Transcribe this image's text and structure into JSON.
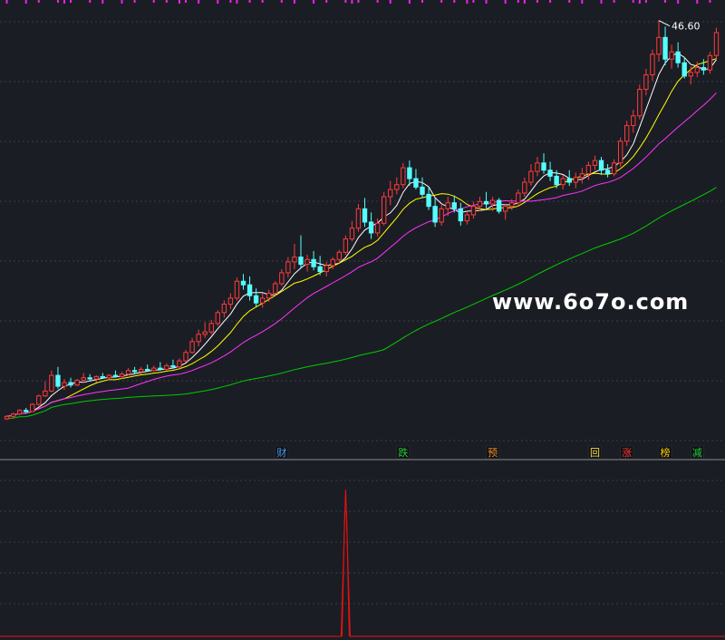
{
  "watermark": "www.6o7o.com",
  "chart_data": [
    {
      "type": "candlestick",
      "panel": "price",
      "high_label": "46.60",
      "ylim": [
        13,
        48
      ],
      "grid": true,
      "moving_averages": [
        {
          "period": 5,
          "color": "#ffffff"
        },
        {
          "period": 10,
          "color": "#ffff00"
        },
        {
          "period": 20,
          "color": "#ff33ff"
        },
        {
          "period": 60,
          "color": "#00cc00"
        }
      ],
      "candles": [
        [
          13.6,
          13.9,
          13.5,
          13.8
        ],
        [
          13.8,
          14.1,
          13.7,
          14.0
        ],
        [
          14.0,
          14.4,
          13.9,
          14.3
        ],
        [
          14.3,
          14.5,
          14.1,
          14.2
        ],
        [
          14.2,
          14.9,
          14.2,
          14.8
        ],
        [
          14.8,
          15.6,
          14.7,
          15.5
        ],
        [
          15.5,
          16.7,
          15.4,
          15.9
        ],
        [
          15.9,
          17.6,
          15.8,
          17.2
        ],
        [
          17.2,
          17.9,
          16.1,
          16.3
        ],
        [
          16.3,
          16.9,
          16.0,
          16.6
        ],
        [
          16.6,
          17.0,
          16.2,
          16.4
        ],
        [
          16.4,
          16.9,
          16.3,
          16.8
        ],
        [
          16.8,
          17.4,
          16.6,
          17.0
        ],
        [
          17.0,
          17.3,
          16.7,
          16.9
        ],
        [
          16.9,
          17.2,
          16.6,
          17.1
        ],
        [
          17.1,
          17.4,
          16.9,
          17.0
        ],
        [
          17.0,
          17.3,
          16.8,
          17.2
        ],
        [
          17.2,
          17.6,
          17.0,
          17.1
        ],
        [
          17.1,
          17.5,
          16.9,
          17.3
        ],
        [
          17.3,
          17.8,
          17.2,
          17.6
        ],
        [
          17.6,
          17.9,
          17.3,
          17.5
        ],
        [
          17.5,
          17.9,
          17.3,
          17.7
        ],
        [
          17.7,
          18.1,
          17.5,
          17.6
        ],
        [
          17.6,
          18.0,
          17.5,
          17.8
        ],
        [
          17.8,
          18.3,
          17.6,
          17.7
        ],
        [
          17.7,
          18.2,
          17.6,
          18.0
        ],
        [
          18.0,
          18.5,
          17.8,
          17.9
        ],
        [
          17.9,
          18.6,
          17.8,
          18.4
        ],
        [
          18.4,
          19.3,
          18.3,
          19.1
        ],
        [
          19.1,
          20.3,
          19.0,
          20.0
        ],
        [
          20.0,
          21.0,
          19.6,
          20.6
        ],
        [
          20.6,
          21.6,
          20.3,
          20.8
        ],
        [
          20.8,
          21.8,
          20.6,
          21.5
        ],
        [
          21.5,
          22.6,
          21.3,
          22.4
        ],
        [
          22.4,
          23.4,
          22.0,
          23.1
        ],
        [
          23.1,
          24.0,
          22.7,
          23.6
        ],
        [
          23.6,
          25.3,
          23.4,
          25.0
        ],
        [
          25.0,
          25.6,
          24.3,
          24.7
        ],
        [
          24.7,
          25.4,
          23.4,
          23.8
        ],
        [
          23.8,
          24.4,
          22.9,
          23.2
        ],
        [
          23.2,
          24.0,
          22.8,
          23.6
        ],
        [
          23.6,
          24.3,
          23.3,
          24.0
        ],
        [
          24.0,
          25.0,
          23.8,
          24.8
        ],
        [
          24.8,
          26.0,
          24.6,
          25.7
        ],
        [
          25.7,
          27.0,
          25.3,
          26.6
        ],
        [
          26.6,
          28.1,
          26.0,
          27.0
        ],
        [
          27.0,
          28.8,
          26.1,
          26.4
        ],
        [
          26.4,
          27.2,
          25.8,
          26.8
        ],
        [
          26.8,
          27.5,
          25.9,
          26.2
        ],
        [
          26.2,
          27.1,
          25.5,
          25.8
        ],
        [
          25.8,
          26.6,
          25.4,
          26.3
        ],
        [
          26.3,
          27.0,
          26.0,
          26.8
        ],
        [
          26.8,
          27.6,
          26.5,
          27.4
        ],
        [
          27.4,
          28.8,
          27.2,
          28.5
        ],
        [
          28.5,
          30.0,
          28.3,
          29.4
        ],
        [
          29.4,
          31.4,
          29.1,
          31.0
        ],
        [
          31.0,
          31.9,
          29.5,
          29.9
        ],
        [
          29.9,
          30.7,
          28.5,
          29.0
        ],
        [
          29.0,
          30.2,
          28.7,
          29.8
        ],
        [
          29.8,
          32.4,
          29.6,
          32.0
        ],
        [
          32.0,
          33.3,
          31.3,
          32.6
        ],
        [
          32.6,
          33.6,
          32.2,
          33.0
        ],
        [
          33.0,
          34.8,
          32.7,
          34.4
        ],
        [
          34.4,
          35.0,
          32.9,
          33.5
        ],
        [
          33.5,
          34.3,
          32.6,
          32.8
        ],
        [
          32.8,
          33.6,
          31.9,
          32.2
        ],
        [
          32.2,
          32.8,
          30.9,
          31.2
        ],
        [
          31.2,
          31.9,
          29.5,
          29.9
        ],
        [
          29.9,
          31.3,
          29.6,
          31.0
        ],
        [
          31.0,
          32.0,
          30.4,
          31.5
        ],
        [
          31.5,
          32.1,
          30.7,
          31.0
        ],
        [
          31.0,
          31.5,
          29.6,
          30.0
        ],
        [
          30.0,
          30.8,
          29.7,
          30.5
        ],
        [
          30.5,
          31.6,
          30.2,
          31.2
        ],
        [
          31.2,
          32.0,
          30.8,
          31.6
        ],
        [
          31.6,
          32.4,
          31.0,
          31.4
        ],
        [
          31.4,
          32.0,
          30.8,
          31.7
        ],
        [
          31.7,
          31.9,
          30.6,
          30.8
        ],
        [
          30.8,
          31.4,
          30.1,
          31.2
        ],
        [
          31.2,
          31.8,
          30.9,
          31.5
        ],
        [
          31.5,
          32.6,
          31.2,
          32.3
        ],
        [
          32.3,
          33.6,
          32.0,
          33.2
        ],
        [
          33.2,
          34.7,
          32.9,
          34.1
        ],
        [
          34.1,
          35.3,
          33.7,
          34.8
        ],
        [
          34.8,
          35.6,
          33.9,
          34.2
        ],
        [
          34.2,
          34.9,
          33.3,
          33.7
        ],
        [
          33.7,
          34.2,
          32.7,
          33.0
        ],
        [
          33.0,
          33.8,
          32.6,
          33.5
        ],
        [
          33.5,
          34.2,
          32.9,
          33.2
        ],
        [
          33.2,
          34.0,
          32.7,
          33.6
        ],
        [
          33.6,
          34.4,
          33.1,
          33.9
        ],
        [
          33.9,
          34.9,
          33.4,
          34.6
        ],
        [
          34.6,
          35.4,
          34.2,
          35.0
        ],
        [
          35.0,
          35.3,
          33.8,
          34.2
        ],
        [
          34.2,
          34.7,
          33.6,
          33.9
        ],
        [
          33.9,
          35.1,
          33.7,
          34.8
        ],
        [
          34.8,
          36.9,
          34.5,
          36.6
        ],
        [
          36.6,
          38.3,
          36.2,
          37.9
        ],
        [
          37.9,
          39.2,
          37.3,
          38.7
        ],
        [
          38.7,
          41.3,
          38.4,
          40.9
        ],
        [
          40.9,
          42.6,
          40.4,
          42.1
        ],
        [
          42.1,
          44.2,
          41.6,
          43.8
        ],
        [
          43.8,
          46.6,
          43.2,
          45.2
        ],
        [
          45.2,
          46.1,
          42.9,
          43.4
        ],
        [
          43.4,
          44.6,
          42.6,
          44.0
        ],
        [
          44.0,
          44.8,
          42.7,
          43.1
        ],
        [
          43.1,
          43.6,
          41.8,
          42.0
        ],
        [
          42.0,
          42.8,
          41.3,
          42.3
        ],
        [
          42.3,
          43.2,
          41.9,
          42.7
        ],
        [
          42.7,
          43.4,
          42.1,
          42.5
        ],
        [
          42.5,
          44.0,
          42.2,
          43.7
        ],
        [
          43.7,
          46.0,
          43.4,
          45.6
        ]
      ],
      "markers": [
        {
          "index": 43,
          "text": "财",
          "color": "#4499ee"
        },
        {
          "index": 62,
          "text": "跌",
          "color": "#22cc33"
        },
        {
          "index": 76,
          "text": "预",
          "color": "#ee8822"
        },
        {
          "index": 92,
          "text": "回",
          "color": "#ffdd44"
        },
        {
          "index": 97,
          "text": "涨",
          "color": "#ff3333"
        },
        {
          "index": 103,
          "text": "榜",
          "color": "#ffcc00"
        },
        {
          "index": 108,
          "text": "减",
          "color": "#22cc33"
        }
      ]
    },
    {
      "type": "line",
      "panel": "indicator",
      "color": "#ee1111",
      "ylim": [
        0,
        100
      ],
      "spike_index": 53,
      "spike_value": 90
    }
  ]
}
